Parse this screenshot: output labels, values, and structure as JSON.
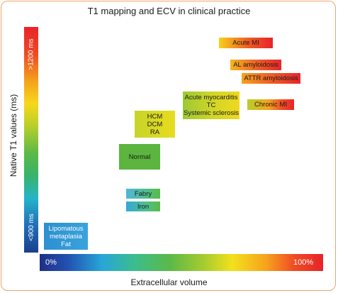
{
  "title": "T1 mapping and ECV in clinical practice",
  "y_axis": {
    "label": "Native T1 values (ms)",
    "top_tick": ">1200 ms",
    "bottom_tick": "<900 ms"
  },
  "x_axis": {
    "label": "Extracellular volume",
    "left_tick": "0%",
    "right_tick": "100%"
  },
  "conditions": {
    "acute_mi": [
      "Acute MI"
    ],
    "al_amyloidosis": [
      "AL amyloidosis"
    ],
    "attr_amyloidosis": [
      "ATTR amyloidosis"
    ],
    "acute_myocarditis": [
      "Acute myocarditis",
      "TC",
      "Systemic sclerosis"
    ],
    "chronic_mi": [
      "Chronic MI"
    ],
    "hcm": [
      "HCM",
      "DCM",
      "RA"
    ],
    "normal": [
      "Normal"
    ],
    "fabry": [
      "Fabry"
    ],
    "iron": [
      "Iron"
    ],
    "lipomatous": [
      "Lipomatous",
      "metaplasia",
      "Fat"
    ]
  }
}
